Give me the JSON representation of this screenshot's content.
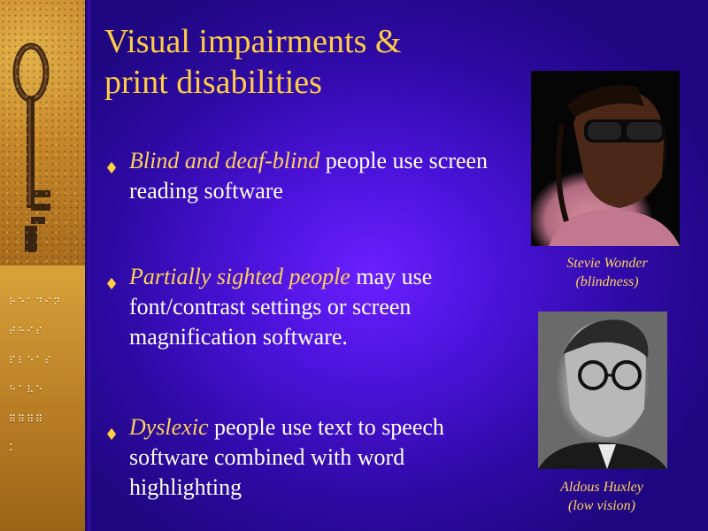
{
  "slide": {
    "title": "Visual impairments &\n print disabilities",
    "bullets": [
      {
        "emphasis": "Blind and deaf-blind",
        "rest": " people use screen reading software"
      },
      {
        "emphasis": "Partially sighted people",
        "rest": " may use font/contrast settings or screen magnification software."
      },
      {
        "emphasis": "Dyslexic",
        "rest": " people use text to speech software combined with word highlighting"
      }
    ],
    "bullet_glyph": "♦",
    "photos": [
      {
        "name": "Stevie Wonder",
        "note": "(blindness)"
      },
      {
        "name": "Aldous Huxley",
        "note": "(low vision)"
      }
    ],
    "braille_rows": [
      "⠗⠑⠁⠙⠊⠝",
      "⠞⠓⠊⠎",
      "⠏⠇⠑⠁⠎",
      "⠓⠁⠧⠑",
      "⠿⠿⠿⠿",
      "⠅"
    ],
    "colors": {
      "title": "#ffcc44",
      "body_text": "#ffffff",
      "emphasis": "#ffd25a",
      "background": "#4a12d8",
      "strip": "#c8892a"
    },
    "icons": [
      "key-icon"
    ]
  }
}
